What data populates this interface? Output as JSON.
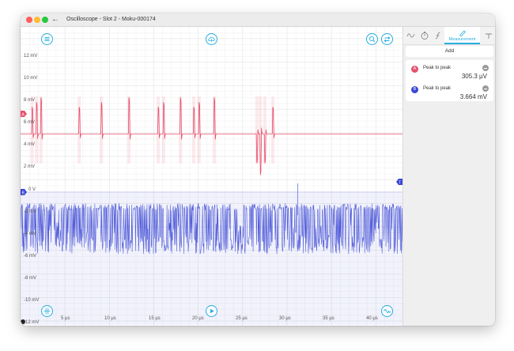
{
  "window": {
    "title": "Oscilloscope - Slot 2 - Moku-000174"
  },
  "colors": {
    "channel_a": "#e8506c",
    "channel_b": "#3a47d4",
    "accent": "#27aee0"
  },
  "plot": {
    "y_labels": [
      "12 mV",
      "10 mV",
      "8 mV",
      "6 mV",
      "4 mV",
      "2 mV",
      "0 V",
      "-2 mV",
      "-4 mV",
      "-6 mV",
      "-8 mV",
      "-10 mV",
      "-12 mV"
    ],
    "x_labels": [
      "5 µs",
      "10 µs",
      "15 µs",
      "20 µs",
      "25 µs",
      "30 µs",
      "35 µs",
      "40 µs"
    ],
    "channel_a_marker": "A",
    "channel_b_marker": "B",
    "trigger_marker": "T",
    "controls": [
      "menu-icon",
      "cloud-upload-icon",
      "zoom-icon",
      "swap-icon",
      "crosshair-icon",
      "play-icon",
      "waveform-icon"
    ]
  },
  "chart_data": {
    "type": "line",
    "xlabel": "",
    "ylabel": "",
    "xlim": [
      0,
      43
    ],
    "ylim": [
      -12,
      13
    ],
    "x_ticks": [
      5,
      10,
      15,
      20,
      25,
      30,
      35,
      40
    ],
    "y_ticks": [
      12,
      10,
      8,
      6,
      4,
      2,
      0,
      -2,
      -4,
      -6,
      -8,
      -10,
      -12
    ],
    "series": [
      {
        "color": "#e8506c",
        "baseline_mv": 3.9,
        "spike_times_us": [
          1.3,
          1.8,
          2.3,
          6.6,
          9.1,
          12.2,
          15.5,
          16.1,
          18.0,
          19.5,
          20.1,
          21.8,
          26.6,
          27.0,
          27.5,
          28.4
        ]
      },
      {
        "color": "#3a47d4",
        "center_mv": -4.2,
        "band_mv": [
          -7.5,
          -2.3
        ]
      }
    ],
    "grid": true
  },
  "sidebar": {
    "tabs": [
      "waveform-icon",
      "timebase-icon",
      "math-icon",
      "measurement-icon",
      "trigger-icon"
    ],
    "active_tab_label": "Measurement",
    "add_label": "Add",
    "measurements": [
      {
        "badge": "A",
        "name": "Peak to peak",
        "value": "305.3 µV"
      },
      {
        "badge": "B",
        "name": "Peak to peak",
        "value": "3.664 mV"
      }
    ]
  }
}
